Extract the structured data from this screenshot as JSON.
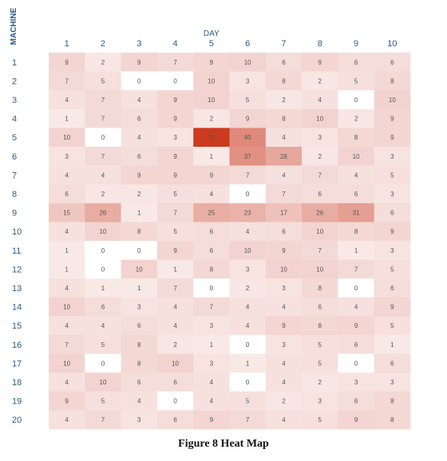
{
  "caption": "Figure 8 Heat Map",
  "chart_data": {
    "type": "heatmap",
    "xlabel": "DAY",
    "ylabel": "MACHINE",
    "x_categories": [
      "1",
      "2",
      "3",
      "4",
      "5",
      "6",
      "7",
      "8",
      "9",
      "10"
    ],
    "y_categories": [
      "1",
      "2",
      "3",
      "4",
      "5",
      "6",
      "7",
      "8",
      "9",
      "10",
      "11",
      "12",
      "13",
      "14",
      "15",
      "16",
      "17",
      "18",
      "19",
      "20"
    ],
    "values": [
      [
        9,
        2,
        9,
        7,
        9,
        10,
        6,
        9,
        6,
        6
      ],
      [
        7,
        5,
        0,
        0,
        10,
        3,
        8,
        2,
        5,
        8
      ],
      [
        4,
        7,
        4,
        9,
        10,
        5,
        2,
        4,
        0,
        10
      ],
      [
        1,
        7,
        6,
        9,
        2,
        9,
        8,
        10,
        2,
        9
      ],
      [
        10,
        0,
        4,
        3,
        72,
        40,
        4,
        3,
        8,
        9
      ],
      [
        3,
        7,
        6,
        9,
        1,
        37,
        28,
        2,
        10,
        3
      ],
      [
        4,
        4,
        9,
        9,
        9,
        7,
        4,
        7,
        4,
        5
      ],
      [
        6,
        2,
        2,
        5,
        4,
        0,
        7,
        6,
        6,
        3
      ],
      [
        15,
        26,
        1,
        7,
        25,
        23,
        17,
        26,
        31,
        6
      ],
      [
        4,
        10,
        8,
        5,
        6,
        4,
        6,
        10,
        8,
        9
      ],
      [
        1,
        0,
        0,
        9,
        6,
        10,
        9,
        7,
        1,
        3
      ],
      [
        1,
        0,
        10,
        1,
        8,
        3,
        10,
        10,
        7,
        5
      ],
      [
        4,
        1,
        1,
        7,
        0,
        2,
        3,
        8,
        0,
        6
      ],
      [
        10,
        6,
        3,
        4,
        7,
        4,
        4,
        6,
        4,
        9
      ],
      [
        4,
        4,
        6,
        4,
        3,
        4,
        9,
        8,
        9,
        5
      ],
      [
        7,
        5,
        8,
        2,
        1,
        0,
        3,
        5,
        6,
        1
      ],
      [
        10,
        0,
        8,
        10,
        3,
        1,
        4,
        5,
        0,
        6
      ],
      [
        4,
        10,
        6,
        6,
        4,
        0,
        4,
        2,
        3,
        3
      ],
      [
        9,
        5,
        4,
        0,
        4,
        5,
        2,
        3,
        6,
        8
      ],
      [
        4,
        7,
        3,
        6,
        9,
        7,
        4,
        5,
        9,
        8
      ]
    ],
    "colors": {
      "low": "#ffffff",
      "mid": "#f2d3cf",
      "high": "#cc3a1f",
      "axis_text": "#2c5d88",
      "cell_text": "#555555"
    }
  }
}
